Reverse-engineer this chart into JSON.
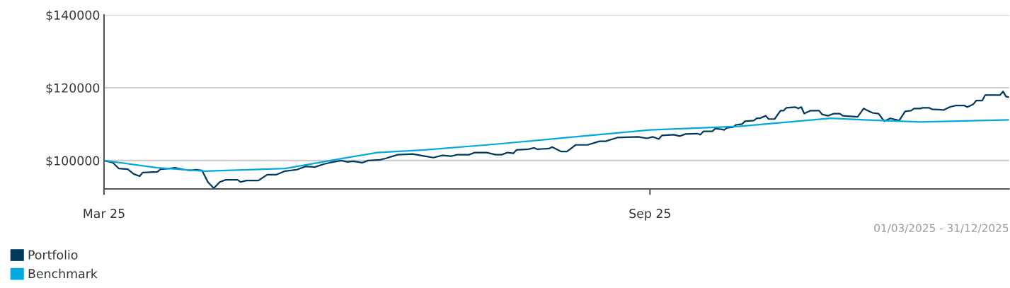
{
  "chart_data": {
    "type": "line",
    "xlim": [
      "2025-03-01",
      "2025-12-31"
    ],
    "xticks": [
      {
        "value": "2025-03-01",
        "label": "Mar 25"
      },
      {
        "value": "2025-09-01",
        "label": "Sep 25"
      }
    ],
    "ylim": [
      92200,
      140000
    ],
    "yticks": [
      {
        "value": 100000,
        "label": "$100000"
      },
      {
        "value": 120000,
        "label": "$120000"
      },
      {
        "value": 140000,
        "label": "$140000"
      }
    ],
    "grid": "y",
    "legend": "bottom",
    "marker": "none",
    "line_style": "solid",
    "annotations": [
      "01/03/2025 - 31/12/2025"
    ],
    "series": [
      {
        "name": "Portfolio",
        "color": "#003a5d",
        "x": [
          "2025-03-01",
          "2025-03-04",
          "2025-03-06",
          "2025-03-09",
          "2025-03-11",
          "2025-03-13",
          "2025-03-14",
          "2025-03-19",
          "2025-03-20",
          "2025-03-23",
          "2025-03-25",
          "2025-03-28",
          "2025-03-30",
          "2025-04-01",
          "2025-04-03",
          "2025-04-05",
          "2025-04-07",
          "2025-04-09",
          "2025-04-11",
          "2025-04-15",
          "2025-04-16",
          "2025-04-18",
          "2025-04-22",
          "2025-04-25",
          "2025-04-28",
          "2025-05-01",
          "2025-05-05",
          "2025-05-08",
          "2025-05-11",
          "2025-05-14",
          "2025-05-16",
          "2025-05-20",
          "2025-05-22",
          "2025-05-24",
          "2025-05-27",
          "2025-05-29",
          "2025-06-02",
          "2025-06-04",
          "2025-06-08",
          "2025-06-13",
          "2025-06-17",
          "2025-06-20",
          "2025-06-23",
          "2025-06-26",
          "2025-06-28",
          "2025-07-02",
          "2025-07-04",
          "2025-07-08",
          "2025-07-11",
          "2025-07-13",
          "2025-07-15",
          "2025-07-17",
          "2025-07-18",
          "2025-07-22",
          "2025-07-24",
          "2025-07-25",
          "2025-07-29",
          "2025-07-30",
          "2025-08-02",
          "2025-08-04",
          "2025-08-07",
          "2025-08-11",
          "2025-08-15",
          "2025-08-17",
          "2025-08-21",
          "2025-08-28",
          "2025-08-31",
          "2025-09-02",
          "2025-09-04",
          "2025-09-05",
          "2025-09-09",
          "2025-09-11",
          "2025-09-13",
          "2025-09-17",
          "2025-09-18",
          "2025-09-19",
          "2025-09-21",
          "2025-09-22",
          "2025-09-23",
          "2025-09-25",
          "2025-09-26",
          "2025-09-27",
          "2025-09-29",
          "2025-09-30",
          "2025-10-02",
          "2025-10-03",
          "2025-10-06",
          "2025-10-07",
          "2025-10-08",
          "2025-10-10",
          "2025-10-11",
          "2025-10-13",
          "2025-10-15",
          "2025-10-16",
          "2025-10-17",
          "2025-10-20",
          "2025-10-21",
          "2025-10-22",
          "2025-10-23",
          "2025-10-25",
          "2025-10-28",
          "2025-10-29",
          "2025-10-31",
          "2025-11-02",
          "2025-11-04",
          "2025-11-05",
          "2025-11-10",
          "2025-11-12",
          "2025-11-13",
          "2025-11-15",
          "2025-11-17",
          "2025-11-19",
          "2025-11-21",
          "2025-11-24",
          "2025-11-26",
          "2025-11-28",
          "2025-11-29",
          "2025-12-01",
          "2025-12-02",
          "2025-12-04",
          "2025-12-05",
          "2025-12-09",
          "2025-12-11",
          "2025-12-13",
          "2025-12-16",
          "2025-12-17",
          "2025-12-19",
          "2025-12-20",
          "2025-12-22",
          "2025-12-23",
          "2025-12-28",
          "2025-12-29",
          "2025-12-30",
          "2025-12-31"
        ],
        "values": [
          100000,
          99400,
          97800,
          97600,
          96300,
          95700,
          96700,
          96900,
          97600,
          97800,
          98000,
          97500,
          97300,
          97500,
          97300,
          94100,
          92400,
          94100,
          94700,
          94700,
          94100,
          94500,
          94500,
          96100,
          96100,
          97100,
          97500,
          98400,
          98200,
          99000,
          99400,
          100000,
          99600,
          99800,
          99400,
          100000,
          100200,
          100600,
          101600,
          101800,
          101200,
          100800,
          101400,
          101200,
          101600,
          101600,
          102200,
          102200,
          101600,
          101600,
          102200,
          102000,
          102900,
          103100,
          103500,
          103100,
          103300,
          103700,
          102500,
          102500,
          104300,
          104300,
          105300,
          105300,
          106300,
          106500,
          106100,
          106500,
          105900,
          106900,
          107100,
          106700,
          107300,
          107400,
          107100,
          108000,
          108000,
          108000,
          108800,
          108600,
          108400,
          109000,
          109200,
          109800,
          110000,
          110800,
          111000,
          111600,
          111600,
          112300,
          111400,
          111400,
          113700,
          113700,
          114500,
          114700,
          114300,
          114700,
          112900,
          113700,
          113700,
          112700,
          112300,
          112900,
          112900,
          112300,
          112000,
          114300,
          113900,
          113100,
          112900,
          110800,
          111600,
          111000,
          113500,
          113700,
          114300,
          114300,
          114500,
          114500,
          114100,
          113900,
          114700,
          115100,
          115100,
          114700,
          115500,
          116500,
          116500,
          118000,
          118000,
          119000,
          117600,
          117400
        ]
      },
      {
        "name": "Benchmark",
        "color": "#00a9e0",
        "x": [
          "2025-03-01",
          "2025-03-19",
          "2025-04-04",
          "2025-05-01",
          "2025-05-15",
          "2025-06-01",
          "2025-06-17",
          "2025-07-11",
          "2025-08-04",
          "2025-09-01",
          "2025-10-01",
          "2025-11-01",
          "2025-11-12",
          "2025-12-01",
          "2025-12-31"
        ],
        "values": [
          100000,
          98000,
          97100,
          97800,
          99800,
          102200,
          102900,
          104500,
          106300,
          108400,
          109400,
          111600,
          111200,
          110600,
          111200
        ]
      }
    ]
  }
}
